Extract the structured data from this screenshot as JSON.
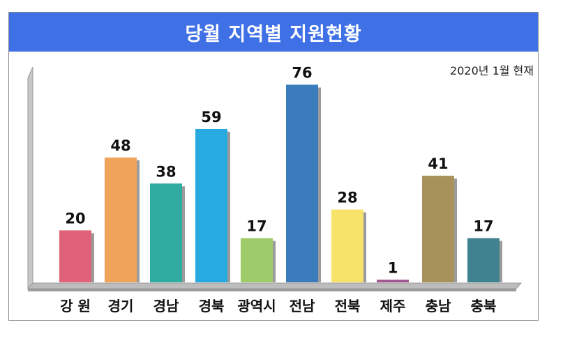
{
  "chart_data": {
    "type": "bar",
    "title": "당월 지역별 지원현황",
    "subtitle": "2020년 1월 현재",
    "categories": [
      "강 원",
      "경기",
      "경남",
      "경북",
      "광역시",
      "전남",
      "전북",
      "제주",
      "충남",
      "충북"
    ],
    "values": [
      20,
      48,
      38,
      59,
      17,
      76,
      28,
      1,
      41,
      17
    ],
    "colors": [
      "#e0627a",
      "#f0a35a",
      "#2fab9f",
      "#27aadf",
      "#9fcc6a",
      "#3b7cbc",
      "#f8e36a",
      "#a0548f",
      "#a8925c",
      "#3f8290"
    ],
    "ylim": [
      0,
      80
    ],
    "grid": false,
    "legend": "none"
  }
}
